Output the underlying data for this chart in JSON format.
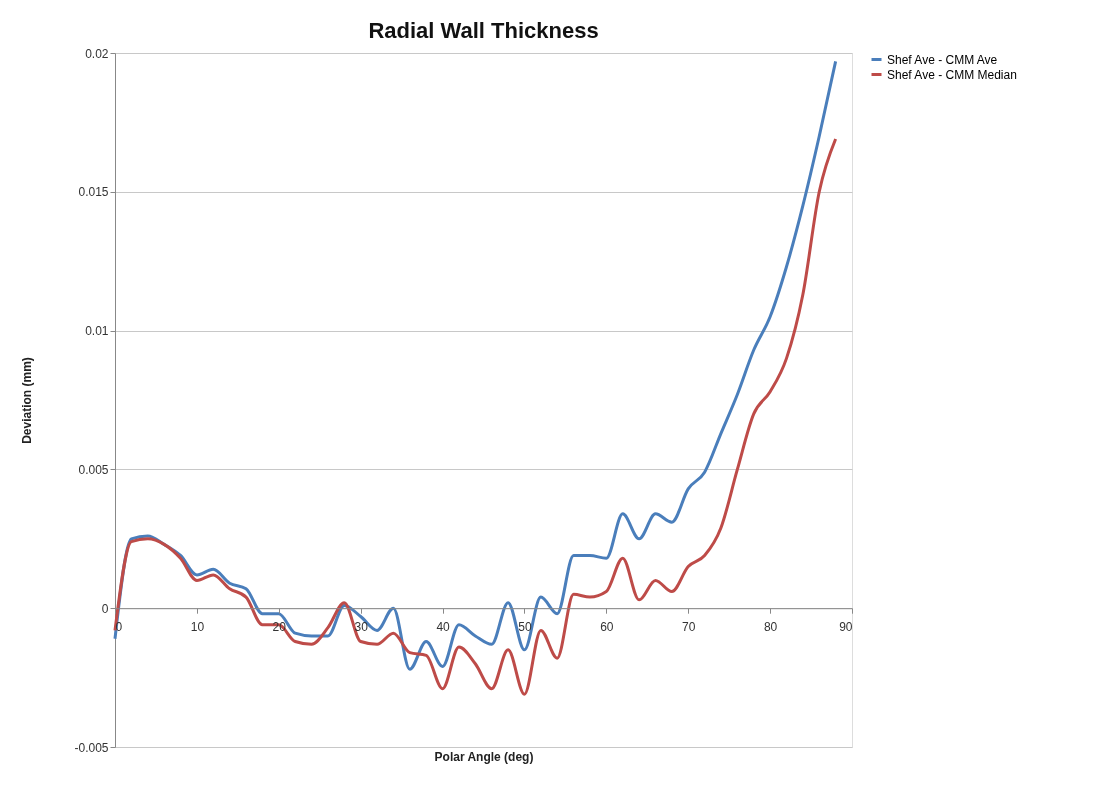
{
  "chart_data": {
    "type": "line",
    "title": "Radial Wall Thickness",
    "xlabel": "Polar Angle (deg)",
    "ylabel": "Deviation (mm)",
    "x": [
      0,
      2,
      4,
      6,
      8,
      10,
      12,
      14,
      16,
      18,
      20,
      22,
      24,
      26,
      28,
      30,
      32,
      34,
      36,
      38,
      40,
      42,
      44,
      46,
      48,
      50,
      52,
      54,
      56,
      58,
      60,
      62,
      64,
      66,
      68,
      70,
      72,
      74,
      76,
      78,
      80,
      82,
      84,
      86,
      88
    ],
    "series": [
      {
        "name": "Shef Ave - CMM Ave",
        "color": "#4a7ebb",
        "values": [
          -0.0011,
          0.0025,
          0.0026,
          0.0023,
          0.0019,
          0.0012,
          0.0014,
          0.0009,
          0.0007,
          -0.0002,
          -0.0002,
          -0.0009,
          -0.001,
          -0.001,
          0.0001,
          -0.0003,
          -0.0008,
          0.0,
          -0.0022,
          -0.0012,
          -0.0021,
          -0.0006,
          -0.001,
          -0.0013,
          0.0002,
          -0.0015,
          0.0004,
          -0.0002,
          0.0019,
          0.0019,
          0.0018,
          0.0034,
          0.0025,
          0.0034,
          0.0031,
          0.0043,
          0.0049,
          0.0063,
          0.0077,
          0.0093,
          0.0105,
          0.0123,
          0.0145,
          0.017,
          0.0197
        ]
      },
      {
        "name": "Shef Ave - CMM Median",
        "color": "#be4b48",
        "values": [
          -0.0008,
          0.0024,
          0.0025,
          0.0023,
          0.0018,
          0.001,
          0.0012,
          0.0007,
          0.0004,
          -0.0006,
          -0.0006,
          -0.0012,
          -0.0013,
          -0.0007,
          0.0002,
          -0.0012,
          -0.0013,
          -0.0009,
          -0.0016,
          -0.0017,
          -0.0029,
          -0.0014,
          -0.002,
          -0.0029,
          -0.0015,
          -0.0031,
          -0.0008,
          -0.0018,
          0.0005,
          0.0004,
          0.0006,
          0.0018,
          0.0003,
          0.001,
          0.0006,
          0.0015,
          0.0019,
          0.0029,
          0.005,
          0.007,
          0.0078,
          0.009,
          0.0113,
          0.015,
          0.0169
        ]
      }
    ],
    "xlim": [
      0,
      90
    ],
    "xticks": [
      0,
      10,
      20,
      30,
      40,
      50,
      60,
      70,
      80,
      90
    ],
    "ylim": [
      -0.005,
      0.02
    ],
    "yticks": [
      -0.005,
      0,
      0.005,
      0.01,
      0.015,
      0.02
    ],
    "grid": "y",
    "legend": "right",
    "marker": "none",
    "line_style": "solid"
  }
}
